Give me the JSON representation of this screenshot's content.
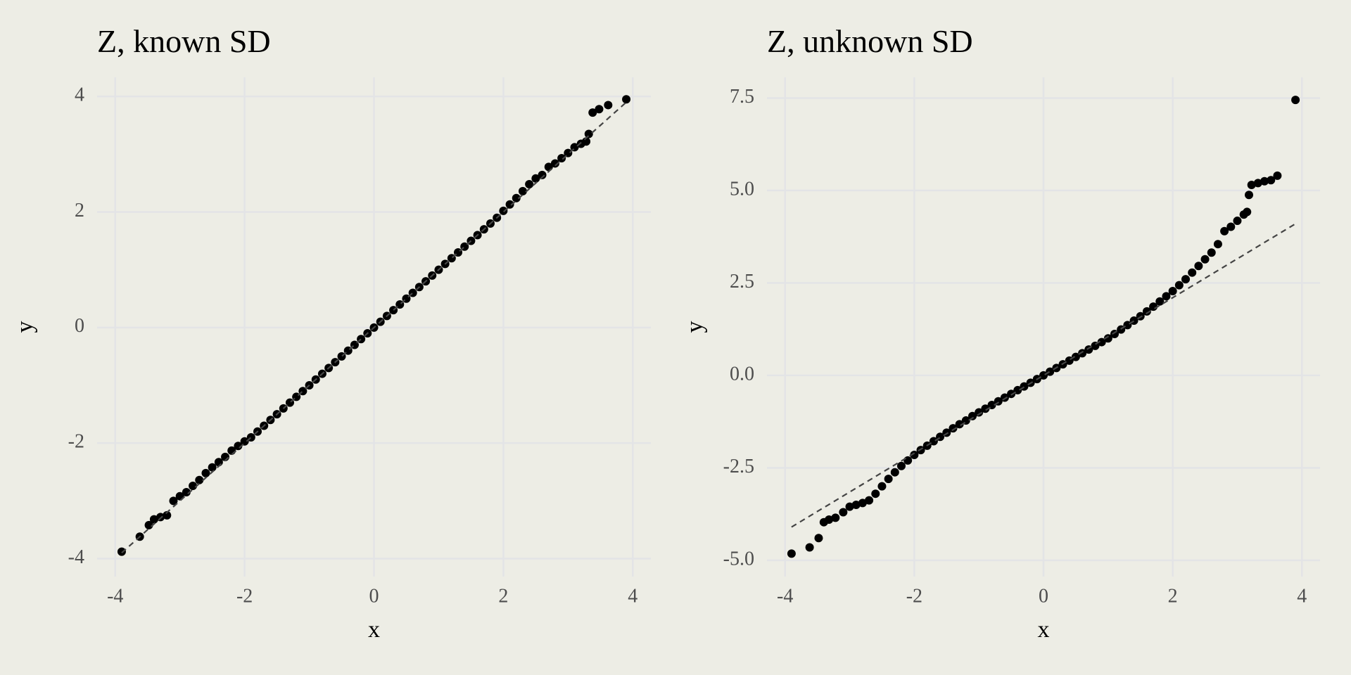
{
  "chart_data": [
    {
      "type": "scatter",
      "title": "Z, known SD",
      "x_label": "x",
      "y_label": "y",
      "color": "#000000",
      "grid": true,
      "xlim": [
        -4.28,
        4.28
      ],
      "ylim": [
        -4.31,
        4.33
      ],
      "xticks": [
        -4,
        -2,
        0,
        2,
        4
      ],
      "yticks": [
        -4,
        -2,
        0,
        2,
        4
      ],
      "x": [
        -3.9,
        -3.62,
        -3.48,
        -3.4,
        -3.3,
        -3.2,
        -3.1,
        -3.0,
        -2.9,
        -2.8,
        -2.7,
        -2.6,
        -2.5,
        -2.4,
        -2.3,
        -2.2,
        -2.1,
        -2.0,
        -1.9,
        -1.8,
        -1.7,
        -1.6,
        -1.5,
        -1.4,
        -1.3,
        -1.2,
        -1.1,
        -1.0,
        -0.9,
        -0.8,
        -0.7,
        -0.6,
        -0.5,
        -0.4,
        -0.3,
        -0.2,
        -0.1,
        0,
        0.1,
        0.2,
        0.3,
        0.4,
        0.5,
        0.6,
        0.7,
        0.8,
        0.9,
        1.0,
        1.1,
        1.2,
        1.3,
        1.4,
        1.5,
        1.6,
        1.7,
        1.8,
        1.9,
        2.0,
        2.1,
        2.2,
        2.3,
        2.4,
        2.5,
        2.6,
        2.7,
        2.8,
        2.9,
        3.0,
        3.1,
        3.2,
        3.28,
        3.32,
        3.38,
        3.48,
        3.62,
        3.9
      ],
      "values": [
        -3.88,
        -3.62,
        -3.42,
        -3.32,
        -3.28,
        -3.25,
        -3.0,
        -2.92,
        -2.85,
        -2.74,
        -2.64,
        -2.52,
        -2.42,
        -2.33,
        -2.24,
        -2.13,
        -2.05,
        -1.97,
        -1.9,
        -1.8,
        -1.7,
        -1.6,
        -1.5,
        -1.4,
        -1.3,
        -1.2,
        -1.1,
        -1.0,
        -0.9,
        -0.8,
        -0.7,
        -0.6,
        -0.5,
        -0.4,
        -0.3,
        -0.2,
        -0.1,
        0,
        0.1,
        0.2,
        0.3,
        0.4,
        0.5,
        0.6,
        0.7,
        0.8,
        0.9,
        1.0,
        1.1,
        1.2,
        1.3,
        1.4,
        1.5,
        1.6,
        1.7,
        1.8,
        1.9,
        2.02,
        2.13,
        2.24,
        2.36,
        2.48,
        2.58,
        2.64,
        2.78,
        2.84,
        2.93,
        3.02,
        3.12,
        3.18,
        3.22,
        3.35,
        3.72,
        3.78,
        3.85,
        3.95
      ],
      "reference_line": {
        "color": "#444444",
        "x": [
          -3.9,
          3.9
        ],
        "values": [
          -3.9,
          3.9
        ]
      }
    },
    {
      "type": "scatter",
      "title": "Z, unknown SD",
      "x_label": "x",
      "y_label": "y",
      "color": "#000000",
      "grid": true,
      "xlim": [
        -4.28,
        4.28
      ],
      "ylim": [
        -5.44,
        8.06
      ],
      "xticks": [
        -4,
        -2,
        0,
        2,
        4
      ],
      "yticks": [
        {
          "value": -5,
          "label": "-5.0"
        },
        -2.5,
        {
          "value": 0,
          "label": "0.0"
        },
        2.5,
        {
          "value": 5,
          "label": "5.0"
        },
        7.5
      ],
      "x": [
        -3.9,
        -3.62,
        -3.48,
        -3.4,
        -3.32,
        -3.22,
        -3.1,
        -3.0,
        -2.9,
        -2.8,
        -2.7,
        -2.6,
        -2.5,
        -2.4,
        -2.3,
        -2.2,
        -2.1,
        -2.0,
        -1.9,
        -1.8,
        -1.7,
        -1.6,
        -1.5,
        -1.4,
        -1.3,
        -1.2,
        -1.1,
        -1.0,
        -0.9,
        -0.8,
        -0.7,
        -0.6,
        -0.5,
        -0.4,
        -0.3,
        -0.2,
        -0.1,
        0,
        0.1,
        0.2,
        0.3,
        0.4,
        0.5,
        0.6,
        0.7,
        0.8,
        0.9,
        1.0,
        1.1,
        1.2,
        1.3,
        1.4,
        1.5,
        1.6,
        1.7,
        1.8,
        1.9,
        2.0,
        2.1,
        2.2,
        2.3,
        2.4,
        2.5,
        2.6,
        2.7,
        2.8,
        2.9,
        3.0,
        3.1,
        3.15,
        3.18,
        3.22,
        3.32,
        3.42,
        3.52,
        3.62,
        3.9
      ],
      "values": [
        -4.82,
        -4.65,
        -4.4,
        -3.97,
        -3.9,
        -3.85,
        -3.7,
        -3.55,
        -3.5,
        -3.45,
        -3.38,
        -3.2,
        -3.0,
        -2.8,
        -2.62,
        -2.45,
        -2.3,
        -2.15,
        -2.02,
        -1.9,
        -1.78,
        -1.66,
        -1.55,
        -1.43,
        -1.32,
        -1.22,
        -1.1,
        -1.0,
        -0.9,
        -0.8,
        -0.7,
        -0.6,
        -0.5,
        -0.4,
        -0.3,
        -0.2,
        -0.1,
        0,
        0.1,
        0.2,
        0.3,
        0.4,
        0.5,
        0.6,
        0.7,
        0.8,
        0.9,
        1.0,
        1.12,
        1.24,
        1.36,
        1.48,
        1.6,
        1.73,
        1.86,
        2.0,
        2.14,
        2.28,
        2.44,
        2.6,
        2.78,
        2.96,
        3.14,
        3.32,
        3.55,
        3.9,
        4.02,
        4.18,
        4.35,
        4.42,
        4.88,
        5.15,
        5.2,
        5.25,
        5.28,
        5.4,
        7.45
      ],
      "reference_line": {
        "color": "#444444",
        "x": [
          -3.9,
          3.9
        ],
        "values": [
          -4.1,
          4.1
        ]
      }
    }
  ]
}
